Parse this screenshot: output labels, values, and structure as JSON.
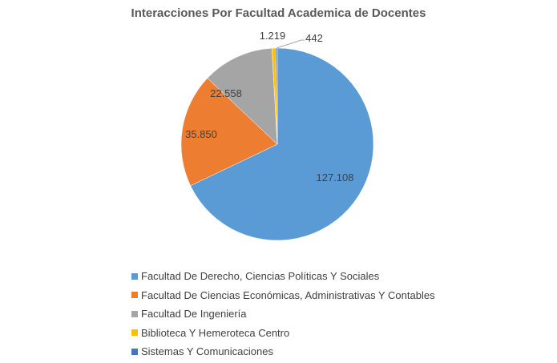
{
  "chart_data": {
    "type": "pie",
    "title": "Interacciones Por Facultad Academica de Docentes",
    "legend_position": "bottom",
    "start_angle": "top, clockwise",
    "slices": [
      {
        "name": "Facultad De Derecho, Ciencias Políticas Y Sociales",
        "value": 127108,
        "label": "127.108",
        "color": "#5B9BD5"
      },
      {
        "name": "Facultad De Ciencias Económicas, Administrativas Y Contables",
        "value": 35850,
        "label": "35.850",
        "color": "#ED7D31"
      },
      {
        "name": "Facultad De Ingeniería",
        "value": 22558,
        "label": "22.558",
        "color": "#A5A5A5"
      },
      {
        "name": "Biblioteca Y Hemeroteca Centro",
        "value": 1219,
        "label": "1.219",
        "color": "#FFC000"
      },
      {
        "name": "Sistemas Y Comunicaciones",
        "value": 442,
        "label": "442",
        "color": "#4472C4"
      }
    ]
  }
}
